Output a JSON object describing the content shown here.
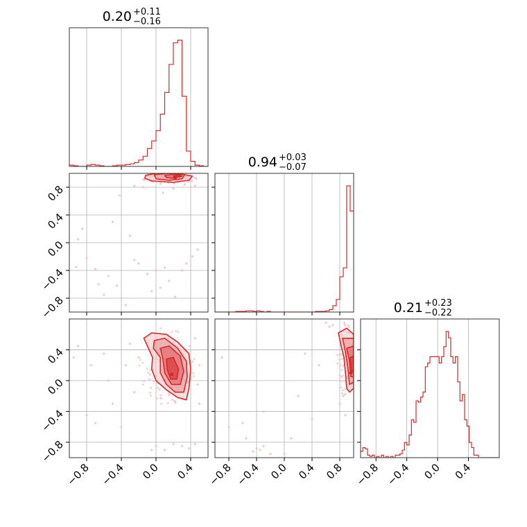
{
  "colors": {
    "accent": "#d62728",
    "fill_light": "#f4c2c2",
    "fill_mid": "#ea8f90",
    "fill_dark": "#df5a5b",
    "grid": "#b0b0b0"
  },
  "chart_data": {
    "type": "corner",
    "grid": true,
    "parameters": [
      {
        "index": 0,
        "range": [
          -1.0,
          0.6
        ],
        "ticks": [
          -0.8,
          -0.4,
          0.0,
          0.4
        ],
        "tick_labels": [
          "−0.8",
          "−0.4",
          "0.0",
          "0.4"
        ],
        "title": {
          "median": "0.20",
          "plus": "+0.11",
          "minus": "−0.16"
        },
        "histogram": {
          "x": [
            -0.975,
            -0.925,
            -0.875,
            -0.825,
            -0.775,
            -0.725,
            -0.675,
            -0.625,
            -0.575,
            -0.525,
            -0.475,
            -0.425,
            -0.375,
            -0.325,
            -0.275,
            -0.225,
            -0.175,
            -0.125,
            -0.075,
            -0.025,
            0.025,
            0.075,
            0.125,
            0.175,
            0.225,
            0.275,
            0.325,
            0.375,
            0.425,
            0.475,
            0.525,
            0.575
          ],
          "y": [
            0.01,
            0.005,
            0.0,
            0.0,
            0.01,
            0.015,
            0.01,
            0.005,
            0.0,
            0.0,
            0.005,
            0.01,
            0.01,
            0.015,
            0.02,
            0.03,
            0.05,
            0.08,
            0.14,
            0.2,
            0.28,
            0.41,
            0.58,
            0.8,
            0.97,
            0.99,
            0.55,
            0.12,
            0.04,
            0.01,
            0.005,
            0.0
          ]
        }
      },
      {
        "index": 1,
        "range": [
          -1.0,
          1.0
        ],
        "ticks": [
          -0.8,
          -0.4,
          0.0,
          0.4,
          0.8
        ],
        "tick_labels": [
          "−0.8",
          "−0.4",
          "0.0",
          "0.4",
          "0.8"
        ],
        "title": {
          "median": "0.94",
          "plus": "+0.03",
          "minus": "−0.07"
        },
        "histogram": {
          "x": [
            -0.975,
            -0.925,
            -0.875,
            -0.825,
            -0.775,
            -0.725,
            -0.675,
            -0.625,
            -0.575,
            -0.525,
            -0.475,
            -0.425,
            -0.375,
            -0.325,
            -0.275,
            -0.225,
            -0.175,
            -0.125,
            -0.075,
            -0.025,
            0.025,
            0.075,
            0.125,
            0.175,
            0.225,
            0.275,
            0.325,
            0.375,
            0.425,
            0.475,
            0.525,
            0.575,
            0.625,
            0.675,
            0.725,
            0.775,
            0.825,
            0.875,
            0.925,
            0.975
          ],
          "y": [
            0,
            0,
            0,
            0,
            0,
            0,
            0.005,
            0.005,
            0.005,
            0.01,
            0.01,
            0.005,
            0.01,
            0.005,
            0.0,
            0.005,
            0.0,
            0,
            0,
            0,
            0,
            0,
            0,
            0,
            0,
            0,
            0,
            0,
            0,
            0.005,
            0.005,
            0.005,
            0.01,
            0.02,
            0.05,
            0.1,
            0.28,
            0.35,
            1.0,
            0.8
          ]
        }
      },
      {
        "index": 2,
        "range": [
          -1.0,
          0.8
        ],
        "ticks": [
          -0.8,
          -0.4,
          0.0,
          0.4
        ],
        "tick_labels": [
          "−0.8",
          "−0.4",
          "0.0",
          "0.4"
        ],
        "title": {
          "median": "0.21",
          "plus": "+0.23",
          "minus": "−0.22"
        },
        "histogram": {
          "x": [
            -0.985,
            -0.955,
            -0.925,
            -0.895,
            -0.865,
            -0.835,
            -0.805,
            -0.775,
            -0.745,
            -0.715,
            -0.685,
            -0.655,
            -0.625,
            -0.595,
            -0.565,
            -0.535,
            -0.505,
            -0.475,
            -0.445,
            -0.415,
            -0.385,
            -0.355,
            -0.325,
            -0.295,
            -0.265,
            -0.235,
            -0.205,
            -0.175,
            -0.145,
            -0.115,
            -0.085,
            -0.055,
            -0.025,
            0.005,
            0.035,
            0.065,
            0.095,
            0.125,
            0.155,
            0.185,
            0.215,
            0.245,
            0.275,
            0.305,
            0.335,
            0.365,
            0.395,
            0.425,
            0.455,
            0.485,
            0.515,
            0.545,
            0.575,
            0.605,
            0.635,
            0.665,
            0.695,
            0.725,
            0.755,
            0.785
          ],
          "y": [
            0.05,
            0.08,
            0.07,
            0.02,
            0.01,
            0.02,
            0.0,
            0.01,
            0.0,
            0.02,
            0.0,
            0.01,
            0.0,
            0.01,
            0.0,
            0.02,
            0.02,
            0.03,
            0.06,
            0.12,
            0.1,
            0.18,
            0.3,
            0.28,
            0.45,
            0.44,
            0.48,
            0.52,
            0.72,
            0.75,
            0.8,
            0.8,
            0.8,
            0.8,
            0.75,
            0.8,
            0.88,
            1.0,
            0.95,
            0.8,
            0.75,
            0.8,
            0.6,
            0.45,
            0.5,
            0.3,
            0.25,
            0.12,
            0.08,
            0.02,
            0.02,
            0.0,
            0,
            0,
            0,
            0,
            0,
            0,
            0,
            0
          ]
        }
      }
    ],
    "panels_2d": [
      {
        "x_param": 0,
        "y_param": 1,
        "density_peak": [
          0.22,
          0.94
        ],
        "contours": [
          [
            [
              -0.12,
              0.97
            ],
            [
              0.0,
              1.0
            ],
            [
              0.25,
              1.0
            ],
            [
              0.42,
              0.96
            ],
            [
              0.38,
              0.9
            ],
            [
              0.2,
              0.87
            ],
            [
              -0.05,
              0.89
            ],
            [
              -0.13,
              0.93
            ]
          ],
          [
            [
              -0.02,
              0.98
            ],
            [
              0.15,
              1.0
            ],
            [
              0.33,
              0.98
            ],
            [
              0.3,
              0.92
            ],
            [
              0.15,
              0.9
            ],
            [
              0.0,
              0.92
            ]
          ],
          [
            [
              0.1,
              0.97
            ],
            [
              0.22,
              0.99
            ],
            [
              0.3,
              0.96
            ],
            [
              0.2,
              0.93
            ],
            [
              0.12,
              0.94
            ]
          ],
          [
            [
              0.2,
              0.965
            ],
            [
              0.27,
              0.975
            ],
            [
              0.28,
              0.95
            ],
            [
              0.21,
              0.945
            ]
          ]
        ],
        "points": [
          [
            -0.42,
            0.68
          ],
          [
            -0.92,
            -0.35
          ],
          [
            -0.8,
            -0.22
          ],
          [
            -0.66,
            -0.6
          ],
          [
            -0.7,
            -0.38
          ],
          [
            -0.6,
            -0.75
          ],
          [
            -0.55,
            -0.48
          ],
          [
            -0.45,
            -0.62
          ],
          [
            -0.35,
            -0.9
          ],
          [
            -0.5,
            0.3
          ],
          [
            -0.3,
            0.1
          ],
          [
            -0.2,
            -0.3
          ],
          [
            -0.1,
            -0.45
          ],
          [
            0.0,
            -0.4
          ],
          [
            0.1,
            -0.36
          ],
          [
            0.15,
            -0.55
          ],
          [
            0.22,
            -0.78
          ],
          [
            0.3,
            -0.4
          ],
          [
            0.35,
            -0.3
          ],
          [
            0.42,
            -0.2
          ],
          [
            0.48,
            -0.1
          ],
          [
            -0.05,
            -0.7
          ],
          [
            0.05,
            -0.65
          ],
          [
            -0.25,
            -0.25
          ],
          [
            -0.85,
            0.2
          ],
          [
            -0.9,
            0.05
          ],
          [
            0.08,
            0.72
          ],
          [
            0.2,
            0.78
          ],
          [
            -0.15,
            0.8
          ],
          [
            0.33,
            0.84
          ],
          [
            0.05,
            0.85
          ],
          [
            -0.25,
            0.82
          ],
          [
            0.45,
            0.82
          ]
        ]
      },
      {
        "x_param": 0,
        "y_param": 2,
        "density_peak": [
          0.18,
          0.08
        ],
        "contours": [
          [
            [
              -0.14,
              0.55
            ],
            [
              -0.05,
              0.62
            ],
            [
              0.12,
              0.6
            ],
            [
              0.25,
              0.5
            ],
            [
              0.38,
              0.35
            ],
            [
              0.4,
              0.15
            ],
            [
              0.38,
              -0.1
            ],
            [
              0.35,
              -0.25
            ],
            [
              0.25,
              -0.22
            ],
            [
              0.12,
              -0.12
            ],
            [
              0.0,
              0.0
            ],
            [
              -0.05,
              0.15
            ],
            [
              -0.04,
              0.3
            ],
            [
              -0.1,
              0.45
            ]
          ],
          [
            [
              -0.02,
              0.52
            ],
            [
              0.1,
              0.55
            ],
            [
              0.25,
              0.42
            ],
            [
              0.35,
              0.25
            ],
            [
              0.36,
              0.05
            ],
            [
              0.32,
              -0.15
            ],
            [
              0.22,
              -0.15
            ],
            [
              0.12,
              -0.05
            ],
            [
              0.05,
              0.1
            ],
            [
              0.05,
              0.3
            ],
            [
              -0.03,
              0.42
            ]
          ],
          [
            [
              0.05,
              0.42
            ],
            [
              0.15,
              0.45
            ],
            [
              0.28,
              0.32
            ],
            [
              0.32,
              0.12
            ],
            [
              0.28,
              -0.05
            ],
            [
              0.18,
              -0.05
            ],
            [
              0.1,
              0.1
            ],
            [
              0.08,
              0.28
            ]
          ],
          [
            [
              0.12,
              0.28
            ],
            [
              0.2,
              0.3
            ],
            [
              0.26,
              0.15
            ],
            [
              0.24,
              0.02
            ],
            [
              0.17,
              0.02
            ],
            [
              0.13,
              0.14
            ]
          ]
        ],
        "points": [
          [
            -0.9,
            0.45
          ],
          [
            -0.75,
            0.2
          ],
          [
            -0.6,
            0.35
          ],
          [
            -0.55,
            0.0
          ],
          [
            -0.5,
            -0.3
          ],
          [
            -0.8,
            -0.45
          ],
          [
            -0.4,
            -0.6
          ],
          [
            -0.3,
            0.48
          ],
          [
            -0.2,
            0.3
          ],
          [
            -0.25,
            -0.15
          ],
          [
            0.0,
            -0.85
          ],
          [
            0.1,
            -0.9
          ],
          [
            0.3,
            -0.85
          ],
          [
            0.45,
            -0.82
          ],
          [
            0.5,
            -0.3
          ],
          [
            0.5,
            0.2
          ],
          [
            -0.7,
            -0.55
          ],
          [
            -0.95,
            0.3
          ],
          [
            -0.05,
            -0.9
          ],
          [
            0.2,
            -0.82
          ],
          [
            0.38,
            -0.88
          ],
          [
            -0.35,
            0.2
          ],
          [
            0.45,
            0.55
          ],
          [
            0.48,
            -0.05
          ]
        ]
      },
      {
        "x_param": 1,
        "y_param": 2,
        "density_peak": [
          0.96,
          0.1
        ],
        "contours": [
          [
            [
              0.78,
              0.62
            ],
            [
              0.82,
              0.45
            ],
            [
              0.86,
              0.3
            ],
            [
              0.88,
              0.12
            ],
            [
              0.9,
              -0.1
            ],
            [
              0.94,
              -0.15
            ],
            [
              1.0,
              -0.1
            ],
            [
              1.0,
              0.6
            ],
            [
              0.9,
              0.68
            ]
          ],
          [
            [
              0.84,
              0.55
            ],
            [
              0.88,
              0.38
            ],
            [
              0.92,
              0.15
            ],
            [
              0.94,
              -0.05
            ],
            [
              1.0,
              -0.02
            ],
            [
              1.0,
              0.55
            ]
          ],
          [
            [
              0.9,
              0.42
            ],
            [
              0.94,
              0.25
            ],
            [
              0.96,
              0.05
            ],
            [
              1.0,
              0.05
            ],
            [
              1.0,
              0.45
            ]
          ],
          [
            [
              0.95,
              0.3
            ],
            [
              0.97,
              0.12
            ],
            [
              1.0,
              0.12
            ],
            [
              1.0,
              0.32
            ]
          ]
        ],
        "points": [
          [
            0.65,
            0.7
          ],
          [
            0.7,
            0.72
          ],
          [
            0.6,
            0.75
          ],
          [
            -0.4,
            -0.88
          ],
          [
            -0.35,
            -0.9
          ],
          [
            -0.3,
            -0.85
          ],
          [
            -0.45,
            -0.92
          ],
          [
            -0.2,
            -0.95
          ],
          [
            0.0,
            -0.95
          ],
          [
            -0.8,
            -0.6
          ],
          [
            -0.6,
            -0.55
          ],
          [
            -0.3,
            -0.4
          ],
          [
            0.4,
            -0.5
          ],
          [
            0.2,
            -0.2
          ],
          [
            0.5,
            0.2
          ],
          [
            -0.9,
            0.3
          ],
          [
            0.1,
            -0.75
          ],
          [
            -0.55,
            -0.75
          ],
          [
            0.85,
            -0.2
          ],
          [
            0.8,
            -0.3
          ],
          [
            0.88,
            -0.45
          ],
          [
            0.3,
            0.35
          ]
        ]
      }
    ]
  }
}
